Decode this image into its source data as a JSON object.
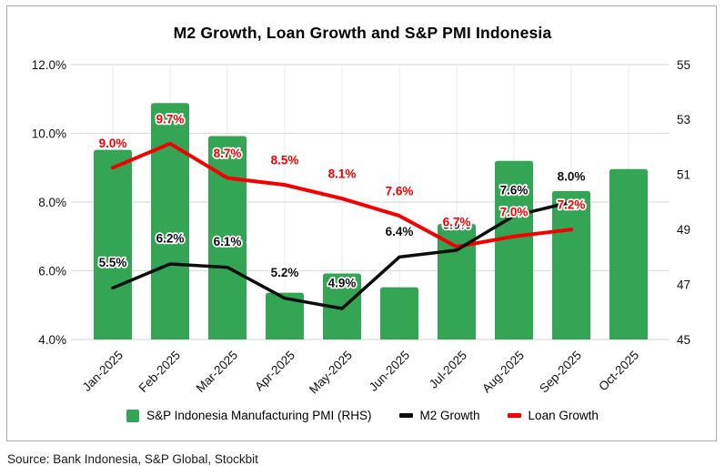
{
  "title": "M2 Growth, Loan Growth and S&P PMI Indonesia",
  "source_note": "Source: Bank Indonesia, S&P Global, Stockbit",
  "legend": [
    {
      "label": "S&P Indonesia Manufacturing PMI (RHS)",
      "swatch": "bar",
      "color": "#34a455"
    },
    {
      "label": "M2 Growth",
      "swatch": "line",
      "color": "#0d0d0d"
    },
    {
      "label": "Loan Growth",
      "swatch": "line",
      "color": "#f40000"
    }
  ],
  "chart_data": {
    "type": "combo (bar + line, dual axis)",
    "title": "M2 Growth, Loan Growth and S&P PMI Indonesia",
    "categories": [
      "Jan-2025",
      "Feb-2025",
      "Mar-2025",
      "Apr-2025",
      "May-2025",
      "Jun-2025",
      "Jul-2025",
      "Aug-2025",
      "Sep-2025",
      "Oct-2025"
    ],
    "bar_series": {
      "name": "S&P Indonesia Manufacturing PMI (RHS)",
      "axis": "right",
      "color": "#34a455",
      "values": [
        51.9,
        53.6,
        52.4,
        46.7,
        47.4,
        46.9,
        49.2,
        51.5,
        50.4,
        51.2
      ]
    },
    "line_series": [
      {
        "name": "M2 Growth",
        "axis": "left",
        "color": "#0d0d0d",
        "values": [
          5.5,
          6.2,
          6.1,
          5.2,
          4.9,
          6.4,
          6.6,
          7.6,
          8.0
        ],
        "labels": [
          "5.5%",
          "6.2%",
          "6.1%",
          "5.2%",
          "4.9%",
          "6.4%",
          "6.6%",
          "7.6%",
          "8.0%"
        ]
      },
      {
        "name": "Loan Growth",
        "axis": "left",
        "color": "#f40000",
        "values": [
          9.0,
          9.7,
          8.7,
          8.5,
          8.1,
          7.6,
          6.7,
          7.0,
          7.2
        ],
        "labels": [
          "9.0%",
          "9.7%",
          "8.7%",
          "8.5%",
          "8.1%",
          "7.6%",
          "6.7%",
          "7.0%",
          "7.2%"
        ]
      }
    ],
    "left_axis": {
      "min": 4,
      "max": 12,
      "tick_values": [
        12,
        10,
        8,
        6,
        4
      ],
      "ticks": [
        "12.0%",
        "10.0%",
        "8.0%",
        "6.0%",
        "4.0%"
      ]
    },
    "right_axis": {
      "min": 45,
      "max": 55,
      "tick_values": [
        55,
        53,
        51,
        49,
        47,
        45
      ],
      "ticks": [
        "55",
        "53",
        "51",
        "49",
        "47",
        "45"
      ]
    },
    "grid": "horizontal gridlines at left-axis ticks, faint vertical gridlines at category centers",
    "legend_position": "bottom",
    "note": "Lines cover Jan-2025 through Sep-2025 only; bars extend to Oct-2025. Black 6.6% label at Jul-2025 is mostly hidden behind red 6.7% label."
  }
}
